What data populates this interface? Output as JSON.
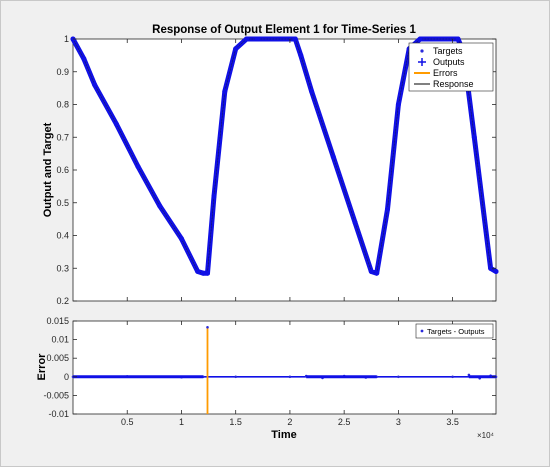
{
  "chart_data": [
    {
      "type": "scatter",
      "title": "Response of Output Element 1 for Time-Series 1",
      "xlabel": "",
      "ylabel": "Output and Target",
      "xlim": [
        0,
        39000
      ],
      "ylim": [
        0.2,
        1.0
      ],
      "yticks": [
        "0.2",
        "0.3",
        "0.4",
        "0.5",
        "0.6",
        "0.7",
        "0.8",
        "0.9",
        "1"
      ],
      "grid": false,
      "legend_position": "top-right",
      "legend": [
        "Targets",
        "Outputs",
        "Errors",
        "Response"
      ],
      "series": [
        {
          "name": "Targets",
          "x": [
            0,
            1000,
            2000,
            4000,
            6000,
            8000,
            10000,
            11500,
            12000,
            12400,
            13000,
            14000,
            15000,
            16000,
            17000,
            20500,
            21000,
            22000,
            24000,
            26000,
            27500,
            28000,
            29000,
            30000,
            31000,
            32000,
            35500,
            36000,
            37000,
            38500,
            39000
          ],
          "y": [
            1.0,
            0.94,
            0.86,
            0.74,
            0.61,
            0.49,
            0.39,
            0.29,
            0.285,
            0.285,
            0.52,
            0.84,
            0.97,
            1.0,
            1.0,
            1.0,
            0.95,
            0.84,
            0.64,
            0.44,
            0.29,
            0.285,
            0.48,
            0.8,
            0.97,
            1.0,
            1.0,
            0.96,
            0.7,
            0.3,
            0.29
          ]
        }
      ]
    },
    {
      "type": "scatter",
      "title": "",
      "xlabel": "Time",
      "ylabel": "Error",
      "xlim": [
        0,
        39000
      ],
      "ylim": [
        -0.01,
        0.015
      ],
      "xticks": [
        "0.5",
        "1",
        "1.5",
        "2",
        "2.5",
        "3",
        "3.5"
      ],
      "xtick_values": [
        5000,
        10000,
        15000,
        20000,
        25000,
        30000,
        35000
      ],
      "x_exponent": "×10⁴",
      "yticks": [
        "-0.01",
        "-0.005",
        "0",
        "0.005",
        "0.01",
        "0.015"
      ],
      "grid": false,
      "legend_position": "top-right",
      "legend": [
        "Targets - Outputs"
      ],
      "spike": {
        "x": 12400,
        "y_min": -0.01,
        "y_max": 0.0133
      },
      "series": [
        {
          "name": "Targets - Outputs",
          "x": [
            0,
            5000,
            10000,
            12000,
            12400,
            15000,
            20000,
            21500,
            23000,
            25000,
            27000,
            28000,
            30000,
            35000,
            36500,
            37500,
            38500,
            39000
          ],
          "y": [
            0.0,
            0.0001,
            -0.0001,
            0.0,
            0.0133,
            0.0,
            0.0,
            0.0002,
            -0.0003,
            0.0002,
            -0.0002,
            0.0,
            0.0,
            0.0,
            0.0005,
            -0.0004,
            0.0003,
            0.0
          ]
        }
      ]
    }
  ],
  "colors": {
    "targets": "#2a2adb",
    "outputs": "#1010e6",
    "errors": "#ff9b00",
    "response": "#000000",
    "zero_line": "#1010e6"
  }
}
